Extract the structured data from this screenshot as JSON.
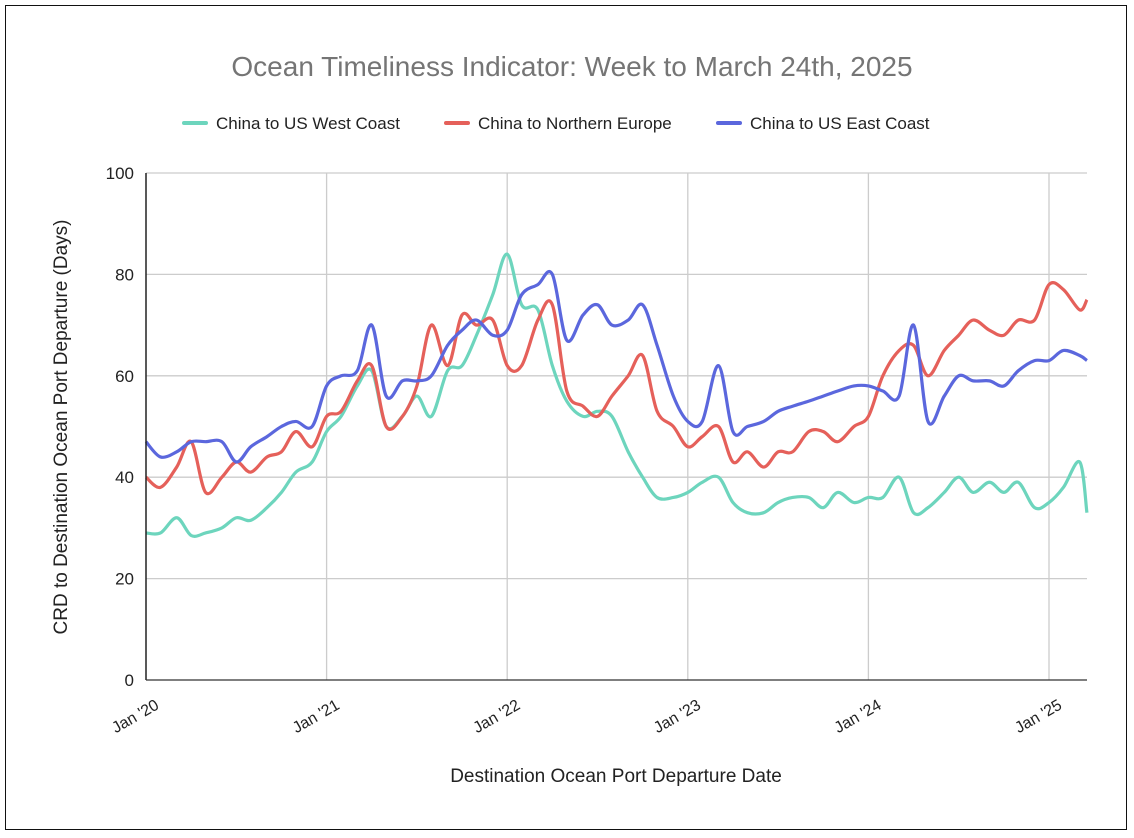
{
  "chart_data": {
    "type": "line",
    "title": "Ocean Timeliness Indicator: Week to March 24th, 2025",
    "xlabel": "Destination Ocean Port Departure Date",
    "ylabel": "CRD to Destination Ocean Port Departure (Days)",
    "ylim": [
      0,
      100
    ],
    "yticks": [
      "0",
      "20",
      "40",
      "60",
      "80",
      "100"
    ],
    "xlim": [
      2020.0,
      2025.21
    ],
    "xticks": [
      {
        "label": "Jan '20",
        "value": 2020
      },
      {
        "label": "Jan '21",
        "value": 2021
      },
      {
        "label": "Jan '22",
        "value": 2022
      },
      {
        "label": "Jan '23",
        "value": 2023
      },
      {
        "label": "Jan '24",
        "value": 2024
      },
      {
        "label": "Jan '25",
        "value": 2025
      }
    ],
    "grid": true,
    "legend_position": "top",
    "x": [
      2020.0,
      2020.08,
      2020.17,
      2020.25,
      2020.33,
      2020.42,
      2020.5,
      2020.58,
      2020.67,
      2020.75,
      2020.83,
      2020.92,
      2021.0,
      2021.08,
      2021.17,
      2021.25,
      2021.33,
      2021.42,
      2021.5,
      2021.58,
      2021.67,
      2021.75,
      2021.83,
      2021.92,
      2022.0,
      2022.08,
      2022.17,
      2022.25,
      2022.33,
      2022.42,
      2022.5,
      2022.58,
      2022.67,
      2022.75,
      2022.83,
      2022.92,
      2023.0,
      2023.08,
      2023.17,
      2023.25,
      2023.33,
      2023.42,
      2023.5,
      2023.58,
      2023.67,
      2023.75,
      2023.83,
      2023.92,
      2024.0,
      2024.08,
      2024.17,
      2024.25,
      2024.33,
      2024.42,
      2024.5,
      2024.58,
      2024.67,
      2024.75,
      2024.83,
      2024.92,
      2025.0,
      2025.08,
      2025.17,
      2025.21
    ],
    "series": [
      {
        "name": "China to US West Coast",
        "color": "#6dd5bd",
        "values": [
          29,
          29,
          32,
          28.5,
          29,
          30,
          32,
          31.5,
          34,
          37,
          41,
          43,
          49,
          52,
          58,
          61,
          50,
          52,
          56,
          52,
          61,
          62,
          68,
          76,
          84,
          74,
          73,
          62,
          55,
          52,
          53,
          52,
          45,
          40,
          36,
          36,
          37,
          39,
          40,
          35,
          33,
          33,
          35,
          36,
          36,
          34,
          37,
          35,
          36,
          36,
          40,
          33,
          34,
          37,
          40,
          37,
          39,
          37,
          39,
          34,
          35,
          38,
          43,
          33
        ]
      },
      {
        "name": "China to Northern Europe",
        "color": "#e5605a",
        "values": [
          40,
          38,
          42,
          47,
          37,
          40,
          43,
          41,
          44,
          45,
          49,
          46,
          52,
          53,
          59,
          62,
          50,
          52,
          58,
          70,
          62,
          72,
          70,
          71,
          62,
          62,
          71,
          74,
          57,
          54,
          52,
          56,
          60,
          64,
          53,
          50,
          46,
          48,
          50,
          43,
          45,
          42,
          45,
          45,
          49,
          49,
          47,
          50,
          52,
          60,
          65,
          66,
          60,
          65,
          68,
          71,
          69,
          68,
          71,
          71,
          78,
          77,
          73,
          75
        ]
      },
      {
        "name": "China to US East Coast",
        "color": "#5b67dd",
        "values": [
          47,
          44,
          45,
          47,
          47,
          47,
          43,
          46,
          48,
          50,
          51,
          50,
          58,
          60,
          61,
          70,
          56,
          59,
          59,
          60,
          66,
          69,
          71,
          68,
          69,
          76,
          78,
          80,
          67,
          72,
          74,
          70,
          71,
          74,
          66,
          56,
          51,
          51,
          62,
          49,
          50,
          51,
          53,
          54,
          55,
          56,
          57,
          58,
          58,
          57,
          56,
          70,
          51,
          56,
          60,
          59,
          59,
          58,
          61,
          63,
          63,
          65,
          64,
          63
        ]
      }
    ]
  }
}
